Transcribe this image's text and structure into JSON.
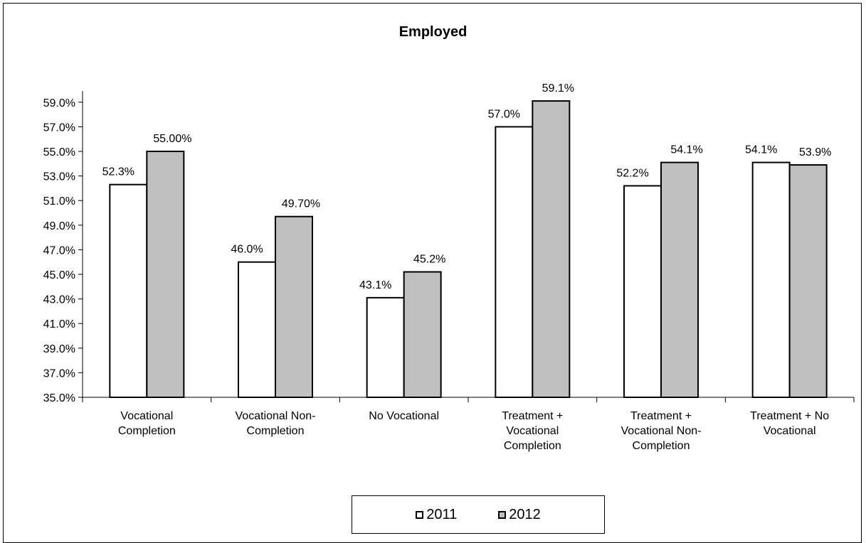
{
  "chart_data": {
    "type": "bar",
    "title": "Employed",
    "xlabel": "",
    "ylabel": "",
    "ylim": [
      35.0,
      60.0
    ],
    "yticks": [
      "35.0%",
      "37.0%",
      "39.0%",
      "41.0%",
      "43.0%",
      "45.0%",
      "47.0%",
      "49.0%",
      "51.0%",
      "53.0%",
      "55.0%",
      "57.0%",
      "59.0%"
    ],
    "ytick_values": [
      35,
      37,
      39,
      41,
      43,
      45,
      47,
      49,
      51,
      53,
      55,
      57,
      59
    ],
    "categories": [
      [
        "Vocational",
        "Completion"
      ],
      [
        "Vocational Non-",
        "Completion"
      ],
      [
        "No Vocational"
      ],
      [
        "Treatment +",
        "Vocational",
        "Completion"
      ],
      [
        "Treatment +",
        "Vocational Non-",
        "Completion"
      ],
      [
        "Treatment + No",
        "Vocational"
      ]
    ],
    "series": [
      {
        "name": "2011",
        "color": "#ffffff",
        "values": [
          52.3,
          46.0,
          43.1,
          57.0,
          52.2,
          54.1
        ],
        "labels": [
          "52.3%",
          "46.0%",
          "43.1%",
          "57.0%",
          "52.2%",
          "54.1%"
        ]
      },
      {
        "name": "2012",
        "color": "#c0c0c0",
        "values": [
          55.0,
          49.7,
          45.2,
          59.1,
          54.1,
          53.9
        ],
        "labels": [
          "55.00%",
          "49.70%",
          "45.2%",
          "59.1%",
          "54.1%",
          "53.9%"
        ]
      }
    ],
    "grid": false,
    "legend_position": "bottom"
  }
}
